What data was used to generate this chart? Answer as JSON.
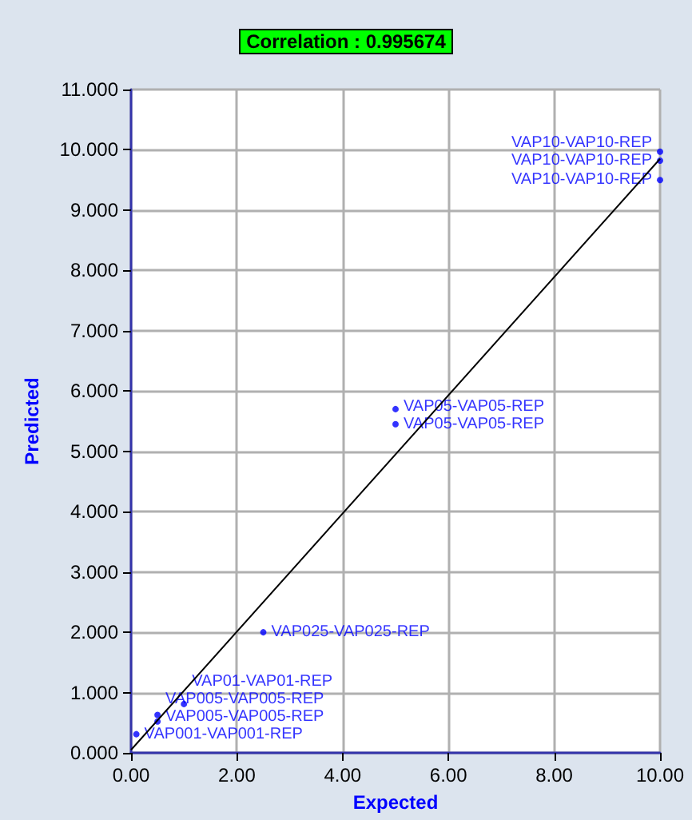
{
  "chart_data": {
    "type": "scatter",
    "title": "Correlation : 0.995674",
    "xlabel": "Expected",
    "ylabel": "Predicted",
    "xlim": [
      0,
      10
    ],
    "ylim": [
      0,
      11
    ],
    "xticks": [
      {
        "value": 0,
        "label": "0.00"
      },
      {
        "value": 2,
        "label": "2.00"
      },
      {
        "value": 4,
        "label": "4.00"
      },
      {
        "value": 6,
        "label": "6.00"
      },
      {
        "value": 8,
        "label": "8.00"
      },
      {
        "value": 10,
        "label": "10.00"
      }
    ],
    "yticks": [
      {
        "value": 0,
        "label": "0.000"
      },
      {
        "value": 1,
        "label": "1.000"
      },
      {
        "value": 2,
        "label": "2.000"
      },
      {
        "value": 3,
        "label": "3.000"
      },
      {
        "value": 4,
        "label": "4.000"
      },
      {
        "value": 5,
        "label": "5.000"
      },
      {
        "value": 6,
        "label": "6.000"
      },
      {
        "value": 7,
        "label": "7.000"
      },
      {
        "value": 8,
        "label": "8.000"
      },
      {
        "value": 9,
        "label": "9.000"
      },
      {
        "value": 10,
        "label": "10.000"
      },
      {
        "value": 11,
        "label": "11.000"
      }
    ],
    "grid": true,
    "series": [
      {
        "color": "#0000ff",
        "marker": "circle",
        "x": [
          0.1,
          0.5,
          0.5,
          1.0,
          2.5,
          5.0,
          5.0,
          10.0,
          10.0,
          10.0
        ],
        "values": [
          0.31,
          0.52,
          0.63,
          0.81,
          2.0,
          5.45,
          5.7,
          9.5,
          9.82,
          9.97
        ],
        "value_labels": [
          "VAP001-VAP001-REP",
          "VAP005-VAP005-REP",
          "VAP005-VAP005-REP",
          "VAP01-VAP01-REP",
          "VAP025-VAP025-REP",
          "VAP05-VAP05-REP",
          "VAP05-VAP05-REP",
          "VAP10-VAP10-REP",
          "VAP10-VAP10-REP",
          "VAP10-VAP10-REP"
        ]
      },
      {
        "type": "line",
        "color": "#000000",
        "x": [
          0,
          10
        ],
        "values": [
          0.05,
          9.85
        ]
      }
    ]
  }
}
